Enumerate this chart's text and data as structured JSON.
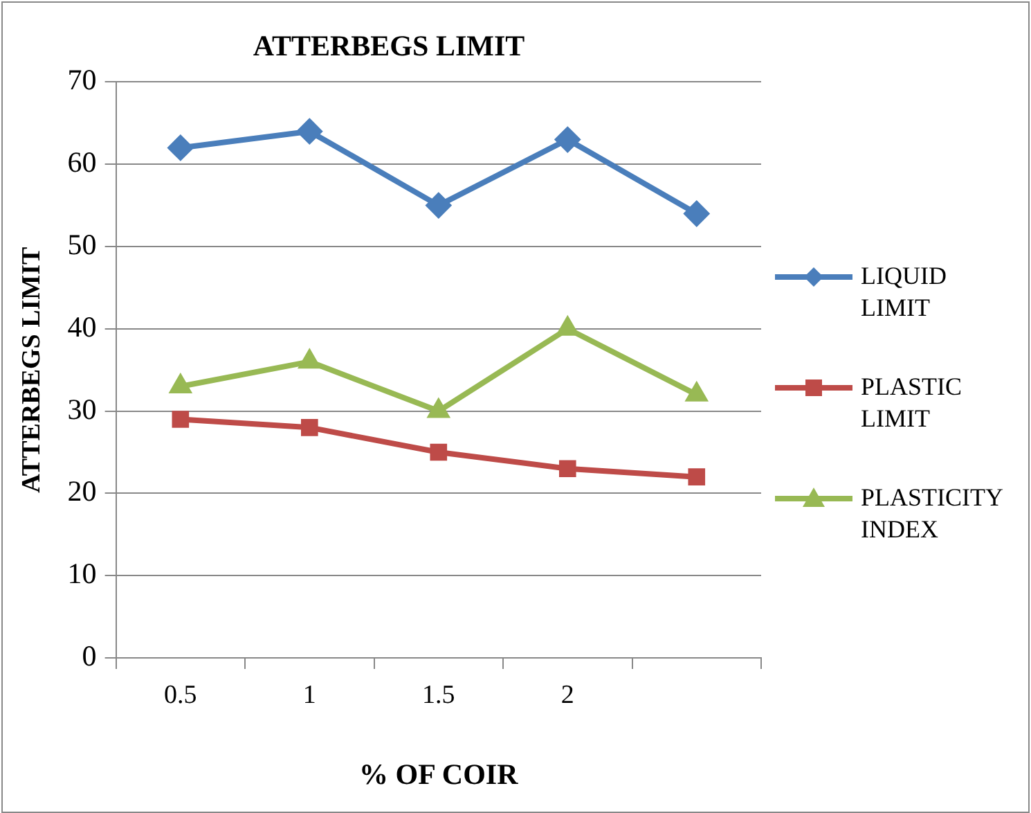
{
  "chart_data": {
    "type": "line",
    "title": "ATTERBEGS LIMIT",
    "xlabel": "% OF COIR",
    "ylabel": "ATTERBEGS LIMIT",
    "categories": [
      "0.5",
      "1",
      "1.5",
      "2",
      null
    ],
    "series": [
      {
        "name": "LIQUID LIMIT",
        "color": "#4a7ebb",
        "marker": "diamond",
        "values": [
          62,
          64,
          55,
          63,
          54
        ]
      },
      {
        "name": "PLASTIC LIMIT",
        "color": "#be4b48",
        "marker": "square",
        "values": [
          29,
          28,
          25,
          23,
          22
        ]
      },
      {
        "name": "PLASTICITY INDEX",
        "color": "#98b954",
        "marker": "triangle",
        "values": [
          33,
          36,
          30,
          40,
          32
        ]
      }
    ],
    "ylim": [
      0,
      70
    ],
    "yticks": [
      0,
      10,
      20,
      30,
      40,
      50,
      60,
      70
    ],
    "grid": "y",
    "legend": "right",
    "line_style": "solid"
  }
}
